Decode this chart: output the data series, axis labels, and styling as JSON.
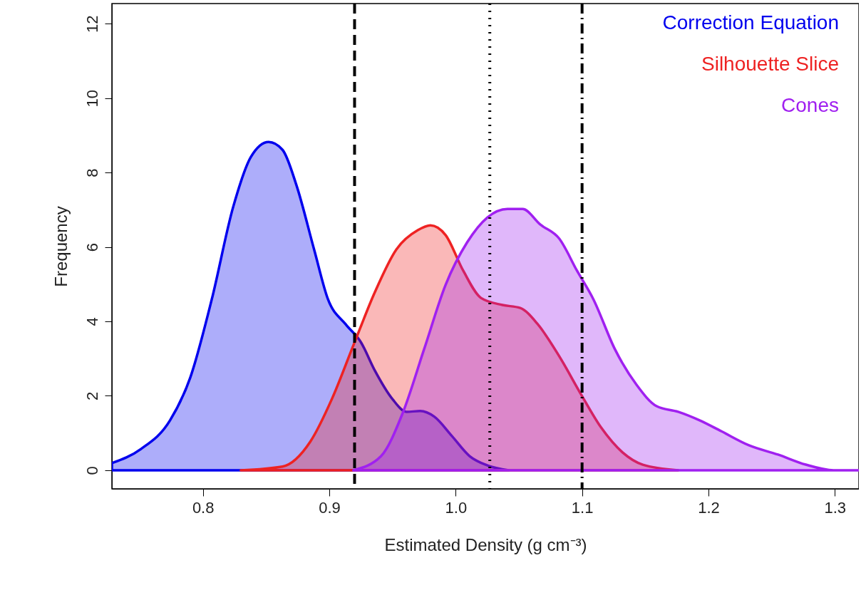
{
  "chart_data": {
    "type": "area",
    "xlabel": "Estimated Density (g cm⁻³)",
    "ylabel": "Frequency",
    "xlim": [
      0.728,
      1.319
    ],
    "ylim": [
      -0.5,
      12.54
    ],
    "xticks": [
      {
        "value": 0.8,
        "label": "0.8"
      },
      {
        "value": 0.9,
        "label": "0.9"
      },
      {
        "value": 1.0,
        "label": "1.0"
      },
      {
        "value": 1.1,
        "label": "1.1"
      },
      {
        "value": 1.2,
        "label": "1.2"
      },
      {
        "value": 1.3,
        "label": "1.3"
      }
    ],
    "yticks": [
      0,
      2,
      4,
      6,
      8,
      10,
      12
    ],
    "grid": false,
    "legend": "top right",
    "series": [
      {
        "name": "Correction Equation",
        "color": "#0000ee",
        "x": [
          0.728,
          0.751,
          0.774,
          0.79,
          0.807,
          0.824,
          0.838,
          0.852,
          0.863,
          0.874,
          0.888,
          0.899,
          0.913,
          0.925,
          0.936,
          0.95,
          0.961,
          0.972,
          0.983,
          0.997,
          1.011,
          1.025,
          1.042
        ],
        "values": [
          0.19,
          0.57,
          1.34,
          2.49,
          4.59,
          7.08,
          8.42,
          8.82,
          8.61,
          7.66,
          5.93,
          4.59,
          3.92,
          3.44,
          2.68,
          1.91,
          1.57,
          1.59,
          1.44,
          0.92,
          0.38,
          0.13,
          0
        ]
      },
      {
        "name": "Silhouette Slice",
        "color": "#ee2222",
        "x": [
          0.83,
          0.863,
          0.885,
          0.902,
          0.919,
          0.936,
          0.953,
          0.97,
          0.98,
          0.992,
          1.006,
          1.02,
          1.037,
          1.051,
          1.065,
          1.082,
          1.099,
          1.115,
          1.132,
          1.148,
          1.176
        ],
        "values": [
          0,
          0.1,
          0.77,
          1.91,
          3.35,
          4.78,
          5.93,
          6.45,
          6.58,
          6.32,
          5.36,
          4.63,
          4.44,
          4.36,
          3.92,
          3.06,
          2.05,
          1.15,
          0.48,
          0.15,
          0
        ]
      },
      {
        "name": "Cones",
        "color": "#a020f0",
        "x": [
          0.919,
          0.941,
          0.958,
          0.975,
          0.992,
          1.009,
          1.025,
          1.041,
          1.053,
          1.067,
          1.082,
          1.096,
          1.109,
          1.126,
          1.143,
          1.159,
          1.176,
          1.193,
          1.21,
          1.232,
          1.255,
          1.277,
          1.299,
          1.319
        ],
        "values": [
          0,
          0.38,
          1.53,
          3.25,
          4.98,
          6.12,
          6.79,
          7.02,
          7.02,
          6.6,
          6.22,
          5.36,
          4.59,
          3.25,
          2.3,
          1.72,
          1.57,
          1.34,
          1.05,
          0.67,
          0.42,
          0.15,
          0,
          0
        ]
      }
    ],
    "ref_lines": [
      {
        "axis": "x",
        "value": 0.92,
        "line_style": "dashed",
        "color": "#000000"
      },
      {
        "axis": "x",
        "value": 1.027,
        "line_style": "dotted",
        "color": "#000000"
      },
      {
        "axis": "x",
        "value": 1.1,
        "line_style": "dashdot",
        "color": "#000000"
      }
    ]
  }
}
